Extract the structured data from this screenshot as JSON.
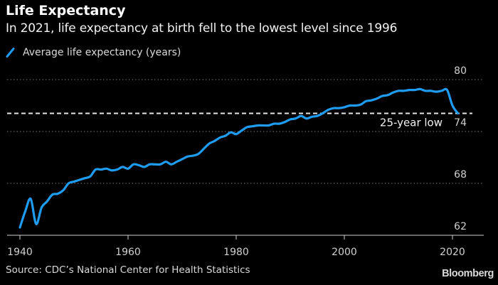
{
  "header": {
    "title": "Life Expectancy",
    "subtitle": "In 2021, life expectancy at birth fell to the lowest level since 1996"
  },
  "legend": {
    "label": "Average life expectancy (years)",
    "color": "#1f9bf0"
  },
  "footer": {
    "source": "Source: CDC’s National Center for Health Statistics",
    "brand": "Bloomberg"
  },
  "chart_data": {
    "type": "line",
    "title": "Life Expectancy",
    "subtitle": "In 2021, life expectancy at birth fell to the lowest level since 1996",
    "xlabel": "",
    "ylabel": "",
    "xlim": [
      1940,
      2021
    ],
    "ylim": [
      62,
      80
    ],
    "x_ticks": [
      1940,
      1960,
      1980,
      2000,
      2020
    ],
    "x_tick_labels": [
      "1940",
      "1960",
      "1980",
      "2000",
      "2020"
    ],
    "y_ticks": [
      62,
      68,
      74,
      80
    ],
    "y_tick_labels": [
      "62",
      "68",
      "74",
      "80"
    ],
    "grid": "horizontal dotted",
    "y_axis_side": "right",
    "legend_position": "top-left",
    "series": [
      {
        "name": "Average life expectancy (years)",
        "color": "#1f9bf0",
        "x": [
          1940,
          1941,
          1942,
          1943,
          1944,
          1945,
          1946,
          1947,
          1948,
          1949,
          1950,
          1951,
          1952,
          1953,
          1954,
          1955,
          1956,
          1957,
          1958,
          1959,
          1960,
          1961,
          1962,
          1963,
          1964,
          1965,
          1966,
          1967,
          1968,
          1969,
          1970,
          1971,
          1972,
          1973,
          1974,
          1975,
          1976,
          1977,
          1978,
          1979,
          1980,
          1981,
          1982,
          1983,
          1984,
          1985,
          1986,
          1987,
          1988,
          1989,
          1990,
          1991,
          1992,
          1993,
          1994,
          1995,
          1996,
          1997,
          1998,
          1999,
          2000,
          2001,
          2002,
          2003,
          2004,
          2005,
          2006,
          2007,
          2008,
          2009,
          2010,
          2011,
          2012,
          2013,
          2014,
          2015,
          2016,
          2017,
          2018,
          2019,
          2020,
          2021
        ],
        "values": [
          62.9,
          64.8,
          66.2,
          63.3,
          65.2,
          65.9,
          66.7,
          66.8,
          67.2,
          68.0,
          68.2,
          68.4,
          68.6,
          68.8,
          69.6,
          69.6,
          69.7,
          69.5,
          69.6,
          69.9,
          69.7,
          70.2,
          70.1,
          69.9,
          70.2,
          70.2,
          70.2,
          70.5,
          70.2,
          70.5,
          70.8,
          71.1,
          71.2,
          71.4,
          72.0,
          72.6,
          72.9,
          73.3,
          73.5,
          73.9,
          73.7,
          74.1,
          74.5,
          74.6,
          74.7,
          74.7,
          74.7,
          74.9,
          74.9,
          75.1,
          75.4,
          75.5,
          75.8,
          75.5,
          75.7,
          75.8,
          76.1,
          76.5,
          76.7,
          76.7,
          76.8,
          77.0,
          77.0,
          77.1,
          77.5,
          77.6,
          77.8,
          78.1,
          78.2,
          78.5,
          78.7,
          78.7,
          78.8,
          78.8,
          78.9,
          78.7,
          78.7,
          78.6,
          78.7,
          78.8,
          77.0,
          76.1
        ]
      }
    ],
    "annotations": [
      {
        "type": "horizontal-dashed-line",
        "y": 76.1,
        "label": "25-year low"
      }
    ]
  }
}
